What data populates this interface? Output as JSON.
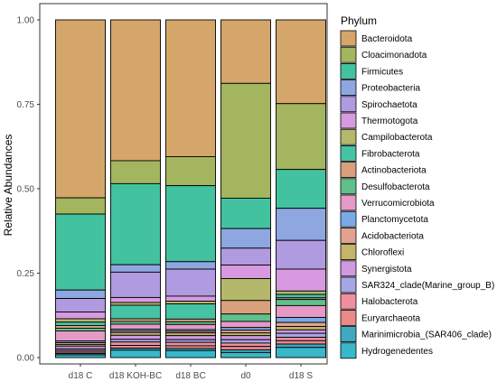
{
  "chart_data": {
    "type": "bar",
    "stacked": true,
    "ylabel": "Relative Abundances",
    "xlabel": "",
    "ylim": [
      0,
      1
    ],
    "yticks": [
      "0.00",
      "0.25",
      "0.50",
      "0.75",
      "1.00"
    ],
    "categories": [
      "d18 C",
      "d18 KOH-BC",
      "d18 BC",
      "d0",
      "d18 S"
    ],
    "legend_title": "Phylum",
    "legend_position": "right",
    "grid": false,
    "series": [
      {
        "name": "Bacteroidota",
        "color": "#D4A66A",
        "values": [
          0.527,
          0.417,
          0.405,
          0.188,
          0.248
        ]
      },
      {
        "name": "Cloacimonadota",
        "color": "#A3B55E",
        "values": [
          0.048,
          0.068,
          0.086,
          0.34,
          0.195
        ]
      },
      {
        "name": "Firmicutes",
        "color": "#43C2A0",
        "values": [
          0.225,
          0.24,
          0.225,
          0.09,
          0.115
        ]
      },
      {
        "name": "Proteobacteria",
        "color": "#8FA7E0",
        "values": [
          0.025,
          0.022,
          0.022,
          0.058,
          0.095
        ]
      },
      {
        "name": "Spirochaetota",
        "color": "#B09AE0",
        "values": [
          0.04,
          0.075,
          0.08,
          0.05,
          0.085
        ]
      },
      {
        "name": "Thermotogota",
        "color": "#D79AE0",
        "values": [
          0.02,
          0.015,
          0.015,
          0.04,
          0.065
        ]
      },
      {
        "name": "Campilobacterota",
        "color": "#B5B86A",
        "values": [
          0.01,
          0.008,
          0.008,
          0.065,
          0.01
        ]
      },
      {
        "name": "Fibrobacterota",
        "color": "#46C3A5",
        "values": [
          0.01,
          0.04,
          0.045,
          0.0,
          0.01
        ]
      },
      {
        "name": "Actinobacteriota",
        "color": "#D9A07E",
        "values": [
          0.008,
          0.008,
          0.008,
          0.04,
          0.005
        ]
      },
      {
        "name": "Desulfobacterota",
        "color": "#5FC08C",
        "values": [
          0.008,
          0.008,
          0.008,
          0.022,
          0.018
        ]
      },
      {
        "name": "Verrucomicrobiota",
        "color": "#E49AC4",
        "values": [
          0.03,
          0.015,
          0.015,
          0.018,
          0.035
        ]
      },
      {
        "name": "Planctomycetota",
        "color": "#7AAAE6",
        "values": [
          0.005,
          0.005,
          0.005,
          0.008,
          0.015
        ]
      },
      {
        "name": "Acidobacteriota",
        "color": "#E2A38E",
        "values": [
          0.005,
          0.005,
          0.005,
          0.008,
          0.012
        ]
      },
      {
        "name": "Chloroflexi",
        "color": "#C4B56A",
        "values": [
          0.005,
          0.008,
          0.008,
          0.008,
          0.01
        ]
      },
      {
        "name": "Synergistota",
        "color": "#CF9AE0",
        "values": [
          0.008,
          0.012,
          0.012,
          0.012,
          0.01
        ]
      },
      {
        "name": "SAR324_clade(Marine_group_B)",
        "color": "#A7A6E6",
        "values": [
          0.005,
          0.008,
          0.008,
          0.01,
          0.012
        ]
      },
      {
        "name": "Halobacterota",
        "color": "#F0909E",
        "values": [
          0.005,
          0.01,
          0.01,
          0.01,
          0.01
        ]
      },
      {
        "name": "Euryarchaeota",
        "color": "#E88A8A",
        "values": [
          0.004,
          0.008,
          0.008,
          0.01,
          0.01
        ]
      },
      {
        "name": "Marinimicrobia_(SAR406_clade)",
        "color": "#3FA9C2",
        "values": [
          0.004,
          0.006,
          0.006,
          0.008,
          0.01
        ]
      },
      {
        "name": "Hydrogenedentes",
        "color": "#39B8C9",
        "values": [
          0.008,
          0.022,
          0.021,
          0.015,
          0.03
        ]
      }
    ]
  }
}
